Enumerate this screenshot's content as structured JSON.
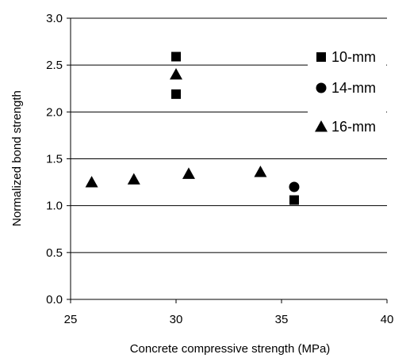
{
  "chart_data": {
    "type": "scatter",
    "xlabel": "Concrete compressive strength (MPa)",
    "ylabel": "Normalized bond strength",
    "xlim": [
      25,
      40
    ],
    "ylim": [
      0.0,
      3.0
    ],
    "x_ticks": [
      25,
      30,
      35,
      40
    ],
    "x_tick_labels": [
      "25",
      "30",
      "35",
      "40"
    ],
    "y_ticks": [
      0.0,
      0.5,
      1.0,
      1.5,
      2.0,
      2.5,
      3.0
    ],
    "y_tick_labels": [
      "0.0",
      "0.5",
      "1.0",
      "1.5",
      "2.0",
      "2.5",
      "3.0"
    ],
    "grid": "horizontal major gridlines",
    "legend_position": "right",
    "series": [
      {
        "name": "10-mm",
        "marker": "square",
        "color": "#000000",
        "points": [
          {
            "x": 30.0,
            "y": 2.59
          },
          {
            "x": 30.0,
            "y": 2.19
          },
          {
            "x": 35.6,
            "y": 1.06
          }
        ]
      },
      {
        "name": "14-mm",
        "marker": "circle",
        "color": "#000000",
        "points": [
          {
            "x": 35.6,
            "y": 1.2
          }
        ]
      },
      {
        "name": "16-mm",
        "marker": "triangle",
        "color": "#000000",
        "points": [
          {
            "x": 26.0,
            "y": 1.25
          },
          {
            "x": 28.0,
            "y": 1.28
          },
          {
            "x": 30.0,
            "y": 2.4
          },
          {
            "x": 30.6,
            "y": 1.34
          },
          {
            "x": 34.0,
            "y": 1.36
          }
        ]
      }
    ]
  }
}
